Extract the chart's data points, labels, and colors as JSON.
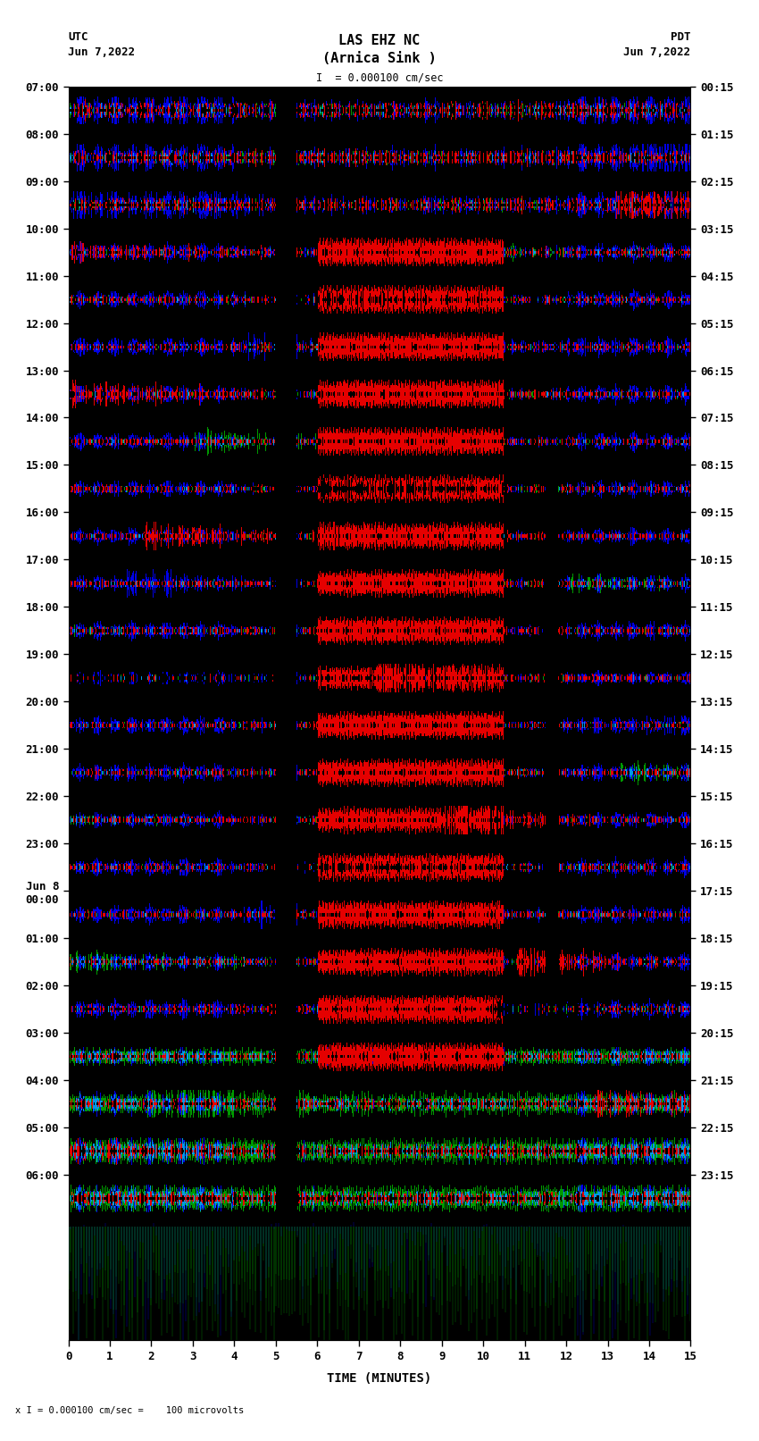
{
  "title_line1": "LAS EHZ NC",
  "title_line2": "(Arnica Sink )",
  "scale_label": "I  = 0.000100 cm/sec",
  "bottom_scale_label": "x I = 0.000100 cm/sec =    100 microvolts",
  "utc_label": "UTC",
  "pdt_label": "PDT",
  "left_date": "Jun 7,2022",
  "right_date": "Jun 7,2022",
  "xlabel": "TIME (MINUTES)",
  "left_yticks": [
    "07:00",
    "08:00",
    "09:00",
    "10:00",
    "11:00",
    "12:00",
    "13:00",
    "14:00",
    "15:00",
    "16:00",
    "17:00",
    "18:00",
    "19:00",
    "20:00",
    "21:00",
    "22:00",
    "23:00",
    "Jun 8\n00:00",
    "01:00",
    "02:00",
    "03:00",
    "04:00",
    "05:00",
    "06:00"
  ],
  "right_yticks": [
    "00:15",
    "01:15",
    "02:15",
    "03:15",
    "04:15",
    "05:15",
    "06:15",
    "07:15",
    "08:15",
    "09:15",
    "10:15",
    "11:15",
    "12:15",
    "13:15",
    "14:15",
    "15:15",
    "16:15",
    "17:15",
    "18:15",
    "19:15",
    "20:15",
    "21:15",
    "22:15",
    "23:15"
  ],
  "xticks": [
    0,
    1,
    2,
    3,
    4,
    5,
    6,
    7,
    8,
    9,
    10,
    11,
    12,
    13,
    14,
    15
  ],
  "bg_color": "#ffffff",
  "n_time_rows": 24,
  "title_fontsize": 11,
  "axis_fontsize": 9,
  "tick_fontsize": 9
}
